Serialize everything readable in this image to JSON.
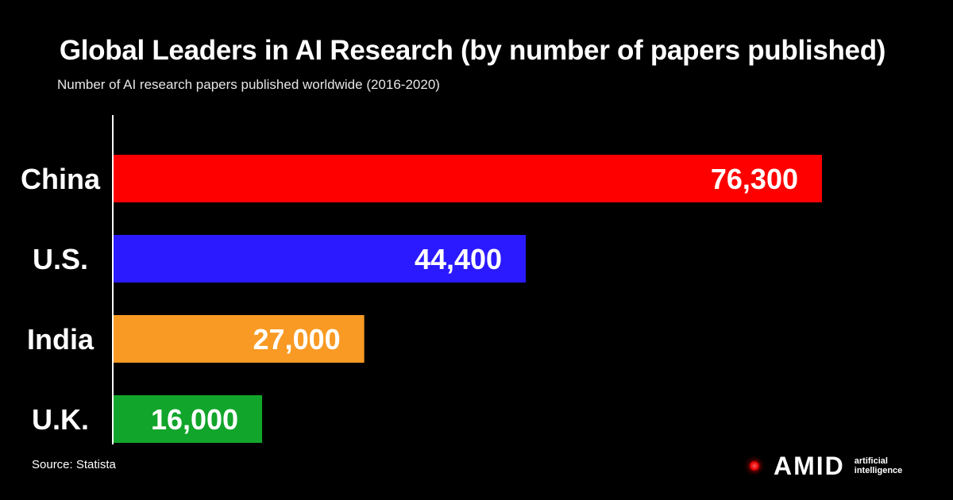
{
  "header": {
    "title": "Global Leaders in AI Research (by number of papers published)",
    "subtitle": "Number of AI research papers published worldwide (2016-2020)"
  },
  "footer": {
    "source": "Source: Statista"
  },
  "brand": {
    "word": "AMID",
    "tagline_1": "artificial",
    "tagline_2": "intelligence",
    "dot_color": "#ff0000"
  },
  "chart_data": {
    "type": "bar",
    "orientation": "horizontal",
    "title": "Global Leaders in AI Research (by number of papers published)",
    "subtitle": "Number of AI research papers published worldwide (2016-2020)",
    "categories": [
      "China",
      "U.S.",
      "India",
      "U.K."
    ],
    "values": [
      76300,
      44400,
      27000,
      16000
    ],
    "value_labels": [
      "76,300",
      "44,400",
      "27,000",
      "16,000"
    ],
    "colors": [
      "#ff0000",
      "#2b1aff",
      "#f89a24",
      "#12a52b"
    ],
    "xlim": [
      0,
      76300
    ],
    "grid": false,
    "legend": "none"
  }
}
